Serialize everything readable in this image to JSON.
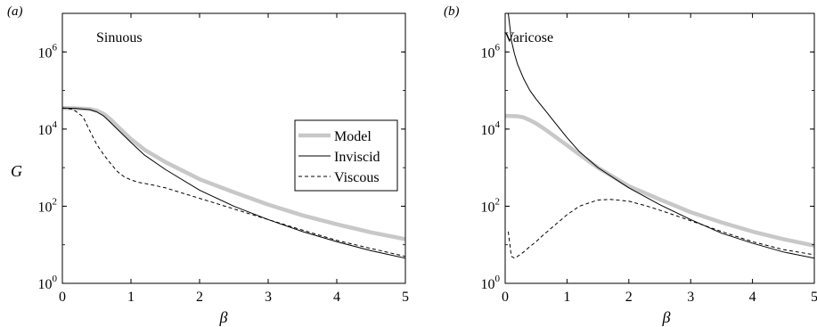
{
  "chart_data": [
    {
      "type": "line",
      "panel_label": "(a)",
      "title": "Sinuous",
      "xlabel": "β",
      "ylabel": "G",
      "xlim": [
        0,
        5
      ],
      "ylim": [
        1,
        10000000
      ],
      "y_scale": "log",
      "x_ticks": [
        0,
        1,
        2,
        3,
        4,
        5
      ],
      "y_ticks": [
        {
          "base": "10",
          "exp": "0"
        },
        {
          "base": "10",
          "exp": "2"
        },
        {
          "base": "10",
          "exp": "4"
        },
        {
          "base": "10",
          "exp": "6"
        }
      ],
      "legend": {
        "position": "right",
        "entries": [
          "Model",
          "Inviscid",
          "Viscous"
        ]
      },
      "series": [
        {
          "name": "Model",
          "style": "thick-grey",
          "x": [
            0,
            0.2,
            0.4,
            0.5,
            0.6,
            0.7,
            0.8,
            1.0,
            1.2,
            1.5,
            2.0,
            2.5,
            3.0,
            3.5,
            4.0,
            4.5,
            5.0
          ],
          "y": [
            35000,
            34500,
            33000,
            30000,
            25000,
            18000,
            12000,
            5500,
            2900,
            1400,
            500,
            230,
            110,
            58,
            34,
            21,
            14
          ]
        },
        {
          "name": "Inviscid",
          "style": "thin-solid",
          "x": [
            0,
            0.2,
            0.4,
            0.5,
            0.6,
            0.7,
            0.8,
            1.0,
            1.2,
            1.5,
            2.0,
            2.5,
            3.0,
            3.5,
            4.0,
            4.5,
            5.0
          ],
          "y": [
            35000,
            34500,
            32000,
            28000,
            22000,
            15000,
            10000,
            4500,
            2100,
            900,
            260,
            100,
            45,
            22,
            12,
            7,
            4.5
          ]
        },
        {
          "name": "Viscous",
          "style": "dashed",
          "x": [
            0,
            0.15,
            0.3,
            0.4,
            0.5,
            0.6,
            0.7,
            0.8,
            0.9,
            1.0,
            1.1,
            1.3,
            1.5,
            2.0,
            2.5,
            3.0,
            3.5,
            4.0,
            4.5,
            5.0
          ],
          "y": [
            35000,
            33000,
            21000,
            9000,
            4000,
            2200,
            1300,
            800,
            580,
            480,
            420,
            360,
            300,
            160,
            85,
            45,
            24,
            13,
            8,
            5
          ]
        }
      ]
    },
    {
      "type": "line",
      "panel_label": "(b)",
      "title": "Varicose",
      "xlabel": "β",
      "ylabel": "",
      "xlim": [
        0,
        5
      ],
      "ylim": [
        1,
        10000000
      ],
      "y_scale": "log",
      "x_ticks": [
        0,
        1,
        2,
        3,
        4,
        5
      ],
      "y_ticks": [
        {
          "base": "10",
          "exp": "0"
        },
        {
          "base": "10",
          "exp": "2"
        },
        {
          "base": "10",
          "exp": "4"
        },
        {
          "base": "10",
          "exp": "6"
        }
      ],
      "series": [
        {
          "name": "Model",
          "style": "thick-grey",
          "x": [
            0,
            0.2,
            0.3,
            0.4,
            0.5,
            0.6,
            0.7,
            0.8,
            1.0,
            1.2,
            1.5,
            2.0,
            2.5,
            3.0,
            3.5,
            4.0,
            4.5,
            5.0
          ],
          "y": [
            22000,
            21500,
            20000,
            17000,
            14000,
            11000,
            8500,
            6500,
            3800,
            2200,
            1000,
            330,
            150,
            70,
            38,
            22,
            14,
            9.5
          ]
        },
        {
          "name": "Inviscid",
          "style": "thin-solid",
          "x": [
            0.05,
            0.08,
            0.1,
            0.15,
            0.2,
            0.3,
            0.4,
            0.5,
            0.6,
            0.7,
            0.8,
            1.0,
            1.2,
            1.5,
            2.0,
            2.5,
            3.0,
            3.5,
            4.0,
            4.5,
            5.0
          ],
          "y": [
            10000000,
            4000000,
            2000000,
            900000,
            480000,
            200000,
            100000,
            60000,
            38000,
            24000,
            15000,
            6000,
            2600,
            1000,
            300,
            110,
            45,
            20,
            11,
            6.5,
            4.5
          ]
        },
        {
          "name": "Viscous",
          "style": "dashed",
          "x": [
            0.05,
            0.1,
            0.15,
            0.2,
            0.3,
            0.4,
            0.5,
            0.6,
            0.8,
            1.0,
            1.2,
            1.5,
            1.7,
            2.0,
            2.3,
            2.6,
            3.0,
            3.5,
            4.0,
            4.5,
            5.0
          ],
          "y": [
            22,
            5,
            4.5,
            5,
            6.5,
            9,
            12,
            17,
            32,
            60,
            100,
            145,
            150,
            135,
            100,
            70,
            42,
            22,
            12,
            7.5,
            5.5
          ]
        }
      ]
    }
  ]
}
